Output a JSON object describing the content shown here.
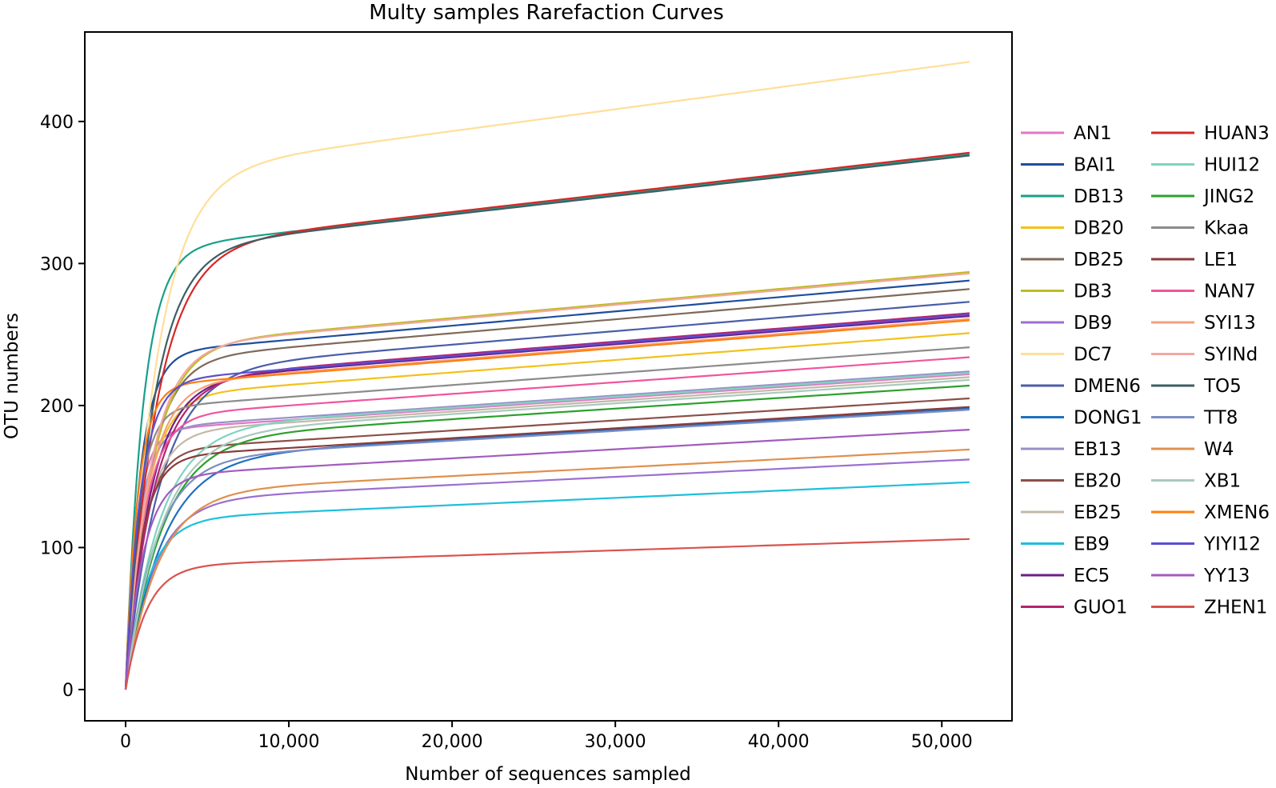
{
  "chart_data": {
    "type": "line",
    "title": "Multy samples Rarefaction Curves",
    "xlabel": "Number of sequences sampled",
    "ylabel": "OTU numbers",
    "xlim": [
      -2500,
      54300
    ],
    "ylim": [
      -22,
      463
    ],
    "x_ticks": [
      0,
      10000,
      20000,
      30000,
      40000,
      50000
    ],
    "x_tick_labels": [
      "0",
      "10,000",
      "20,000",
      "30,000",
      "40,000",
      "50,000"
    ],
    "y_ticks": [
      0,
      100,
      200,
      300,
      400
    ],
    "y_tick_labels": [
      "0",
      "100",
      "200",
      "300",
      "400"
    ],
    "x_max_sampled": 51700,
    "grid": false,
    "legend_position": "right",
    "legend_columns": 2,
    "series": [
      {
        "name": "AN1",
        "color": "#e377c2",
        "final": 222
      },
      {
        "name": "BAI1",
        "color": "#1f4e9c",
        "final": 288
      },
      {
        "name": "DB13",
        "color": "#17a08a",
        "final": 377
      },
      {
        "name": "DB20",
        "color": "#f2c21b",
        "final": 251
      },
      {
        "name": "DB25",
        "color": "#7f6a5a",
        "final": 282
      },
      {
        "name": "DB3",
        "color": "#bcbd22",
        "final": 294
      },
      {
        "name": "DB9",
        "color": "#9b6fd1",
        "final": 162
      },
      {
        "name": "DC7",
        "color": "#ffdf99",
        "final": 442
      },
      {
        "name": "DMEN6",
        "color": "#4a5ea8",
        "final": 273
      },
      {
        "name": "DONG1",
        "color": "#2070c0",
        "final": 198
      },
      {
        "name": "EB13",
        "color": "#9a8fc7",
        "final": 224
      },
      {
        "name": "EB20",
        "color": "#8c5048",
        "final": 205
      },
      {
        "name": "EB25",
        "color": "#c4b8a8",
        "final": 220
      },
      {
        "name": "EB9",
        "color": "#1fbfdb",
        "final": 146
      },
      {
        "name": "EC5",
        "color": "#6a1e8a",
        "final": 263
      },
      {
        "name": "GUO1",
        "color": "#b5246e",
        "final": 265
      },
      {
        "name": "HUAN3",
        "color": "#d62728",
        "final": 378
      },
      {
        "name": "HUI12",
        "color": "#7fd4c1",
        "final": 223
      },
      {
        "name": "JING2",
        "color": "#2ca02c",
        "final": 214
      },
      {
        "name": "Kkaa",
        "color": "#8c8c8c",
        "final": 241
      },
      {
        "name": "LE1",
        "color": "#8b3a3a",
        "final": 199
      },
      {
        "name": "NAN7",
        "color": "#f0559e",
        "final": 234
      },
      {
        "name": "SYI13",
        "color": "#f7a07a",
        "final": 261
      },
      {
        "name": "SYINd",
        "color": "#f4a6a0",
        "final": 293
      },
      {
        "name": "TO5",
        "color": "#3e5f63",
        "final": 376
      },
      {
        "name": "TT8",
        "color": "#7a8fc4",
        "final": 197
      },
      {
        "name": "W4",
        "color": "#e0904f",
        "final": 169
      },
      {
        "name": "XB1",
        "color": "#a9c9bd",
        "final": 218
      },
      {
        "name": "XMEN6",
        "color": "#ff7f0e",
        "final": 260
      },
      {
        "name": "YIYI12",
        "color": "#5a4fcf",
        "final": 264
      },
      {
        "name": "YY13",
        "color": "#a25bbf",
        "final": 183
      },
      {
        "name": "ZHEN1",
        "color": "#d9534f",
        "final": 106
      }
    ]
  }
}
